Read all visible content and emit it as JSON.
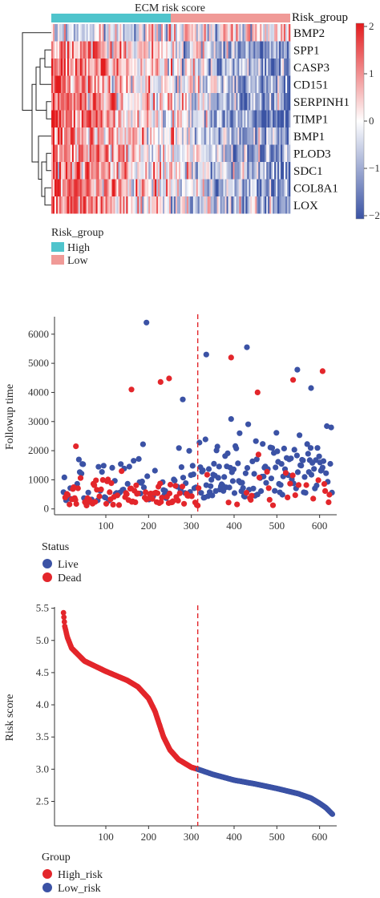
{
  "colors": {
    "high_risk_bar": "#4fc4cc",
    "low_risk_bar": "#f09a97",
    "heat_low": "#3a53a4",
    "heat_mid": "#ffffff",
    "heat_high": "#e31a1c",
    "live": "#3b52a5",
    "dead": "#e3262b",
    "cutoff": "#e3262b"
  },
  "chart_data": [
    {
      "type": "heatmap",
      "title": "ECM risk score",
      "annotation_label": "Risk_group",
      "rows": [
        "BMP2",
        "SPP1",
        "CASP3",
        "CD151",
        "SERPINH1",
        "TIMP1",
        "BMP1",
        "PLOD3",
        "SDC1",
        "COL8A1",
        "LOX"
      ],
      "row_trend": [
        -0.4,
        1.3,
        1.2,
        1.1,
        1.3,
        1.5,
        1.1,
        1.2,
        1.2,
        1.3,
        1.3
      ],
      "n_columns": 630,
      "high_group_fraction": 0.5,
      "colorbar": {
        "min": -2,
        "max": 2,
        "ticks": [
          "2",
          "1",
          "0",
          "−1",
          "−2"
        ]
      },
      "legend": {
        "title": "Risk_group",
        "entries": [
          "High",
          "Low"
        ]
      },
      "dendrogram": "rows",
      "cutoff": null
    },
    {
      "type": "scatter",
      "xlabel": "",
      "ylabel": "Followup time",
      "xlim": [
        -20,
        640
      ],
      "ylim": [
        -200,
        6600
      ],
      "xticks": [
        "100",
        "200",
        "300",
        "400",
        "500",
        "600"
      ],
      "yticks": [
        "0",
        "1000",
        "2000",
        "3000",
        "4000",
        "5000",
        "6000"
      ],
      "cutoff_x": 315,
      "n_points": 630,
      "notable_points": [
        {
          "x": 195,
          "y": 6400,
          "status": "Live"
        },
        {
          "x": 335,
          "y": 5300,
          "status": "Live"
        },
        {
          "x": 430,
          "y": 5550,
          "status": "Live"
        },
        {
          "x": 393,
          "y": 5200,
          "status": "Dead"
        },
        {
          "x": 548,
          "y": 4780,
          "status": "Live"
        },
        {
          "x": 607,
          "y": 4730,
          "status": "Dead"
        },
        {
          "x": 538,
          "y": 4430,
          "status": "Dead"
        },
        {
          "x": 248,
          "y": 4480,
          "status": "Dead"
        },
        {
          "x": 228,
          "y": 4360,
          "status": "Dead"
        },
        {
          "x": 160,
          "y": 4100,
          "status": "Dead"
        },
        {
          "x": 580,
          "y": 4150,
          "status": "Live"
        },
        {
          "x": 455,
          "y": 4000,
          "status": "Dead"
        },
        {
          "x": 280,
          "y": 3760,
          "status": "Live"
        },
        {
          "x": 30,
          "y": 2150,
          "status": "Dead"
        }
      ],
      "legend": {
        "title": "Status",
        "entries": [
          "Live",
          "Dead"
        ]
      }
    },
    {
      "type": "scatter",
      "xlabel": "",
      "ylabel": "Risk score",
      "xlim": [
        -20,
        640
      ],
      "ylim": [
        2.12,
        5.52
      ],
      "xticks": [
        "100",
        "200",
        "300",
        "400",
        "500",
        "600"
      ],
      "yticks": [
        "2.5",
        "3.0",
        "3.5",
        "4.0",
        "4.5",
        "5.0",
        "5.5"
      ],
      "cutoff_x": 315,
      "n_points": 630,
      "curve": [
        [
          1,
          5.43
        ],
        [
          4,
          5.22
        ],
        [
          10,
          5.05
        ],
        [
          20,
          4.88
        ],
        [
          50,
          4.68
        ],
        [
          100,
          4.52
        ],
        [
          150,
          4.38
        ],
        [
          175,
          4.28
        ],
        [
          200,
          4.1
        ],
        [
          215,
          3.9
        ],
        [
          235,
          3.5
        ],
        [
          250,
          3.3
        ],
        [
          270,
          3.15
        ],
        [
          300,
          3.03
        ],
        [
          315,
          3.0
        ],
        [
          350,
          2.92
        ],
        [
          400,
          2.83
        ],
        [
          450,
          2.77
        ],
        [
          500,
          2.7
        ],
        [
          550,
          2.62
        ],
        [
          580,
          2.55
        ],
        [
          600,
          2.47
        ],
        [
          615,
          2.4
        ],
        [
          630,
          2.3
        ]
      ],
      "legend": {
        "title": "Group",
        "entries": [
          "High_risk",
          "Low_risk"
        ]
      }
    }
  ]
}
